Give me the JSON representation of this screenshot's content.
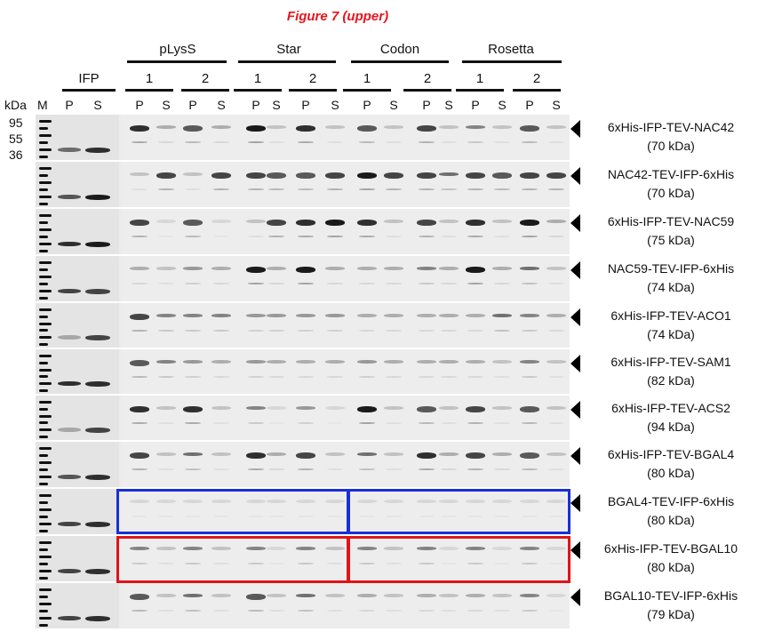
{
  "figure_title": "Figure 7 (upper)",
  "header": {
    "groups": [
      "pLysS",
      "Star",
      "Codon",
      "Rosetta"
    ],
    "ifp": "IFP",
    "kda": "kDa",
    "marker": "M",
    "replicates": [
      "1",
      "2",
      "1",
      "2",
      "1",
      "2",
      "1",
      "2"
    ],
    "lanes": [
      "P",
      "S",
      "P",
      "S",
      "P",
      "S",
      "P",
      "S",
      "P",
      "S",
      "P",
      "S",
      "P",
      "S",
      "P",
      "S",
      "P",
      "S"
    ]
  },
  "markers": [
    "95",
    "55",
    "36"
  ],
  "rows": [
    {
      "name": "6xHis-IFP-TEV-NAC42",
      "mw": "(70 kDa)"
    },
    {
      "name": "NAC42-TEV-IFP-6xHis",
      "mw": "(70 kDa)"
    },
    {
      "name": "6xHis-IFP-TEV-NAC59",
      "mw": "(75 kDa)"
    },
    {
      "name": "NAC59-TEV-IFP-6xHis",
      "mw": "(74 kDa)"
    },
    {
      "name": "6xHis-IFP-TEV-ACO1",
      "mw": "(74 kDa)"
    },
    {
      "name": "6xHis-IFP-TEV-SAM1",
      "mw": "(82 kDa)"
    },
    {
      "name": "6xHis-IFP-TEV-ACS2",
      "mw": "(94 kDa)"
    },
    {
      "name": "6xHis-IFP-TEV-BGAL4",
      "mw": "(80 kDa)"
    },
    {
      "name": "BGAL4-TEV-IFP-6xHis",
      "mw": "(80 kDa)"
    },
    {
      "name": "6xHis-IFP-TEV-BGAL10",
      "mw": "(80 kDa)"
    },
    {
      "name": "BGAL10-TEV-IFP-6xHis",
      "mw": "(79 kDa)"
    }
  ],
  "colors": {
    "title": "#e8141b",
    "blue_box": "#1a2fd6",
    "red_box": "#e01418"
  }
}
